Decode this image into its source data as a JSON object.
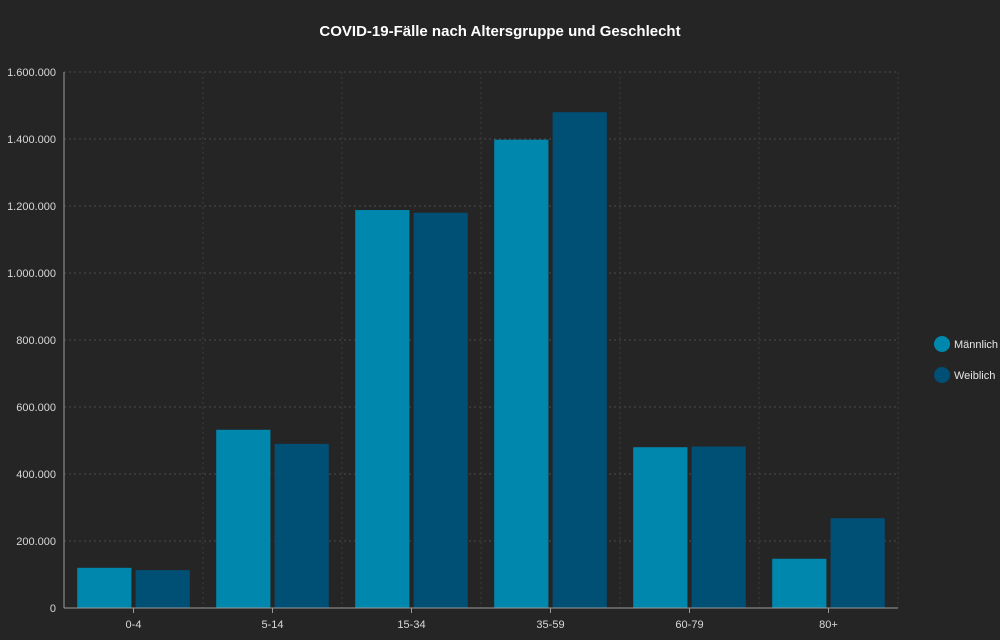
{
  "chart_data": {
    "type": "bar",
    "title": "COVID-19-Fälle nach Altersgruppe und Geschlecht",
    "xlabel": "",
    "ylabel": "",
    "categories": [
      "0-4",
      "5-14",
      "15-34",
      "35-59",
      "60-79",
      "80+"
    ],
    "series": [
      {
        "name": "Männlich",
        "color": "#0087ad",
        "values": [
          120000,
          532000,
          1188000,
          1398000,
          480000,
          147000
        ]
      },
      {
        "name": "Weiblich",
        "color": "#004f75",
        "values": [
          113000,
          490000,
          1180000,
          1480000,
          482000,
          268000
        ]
      }
    ],
    "ylim": [
      0,
      1600000
    ],
    "yticks": [
      0,
      200000,
      400000,
      600000,
      800000,
      1000000,
      1200000,
      1400000,
      1600000
    ],
    "ytick_labels": [
      "0",
      "200.000",
      "400.000",
      "600.000",
      "800.000",
      "1.000.000",
      "1.200.000",
      "1.400.000",
      "1.600.000"
    ],
    "grid": true,
    "legend_position": "right"
  }
}
